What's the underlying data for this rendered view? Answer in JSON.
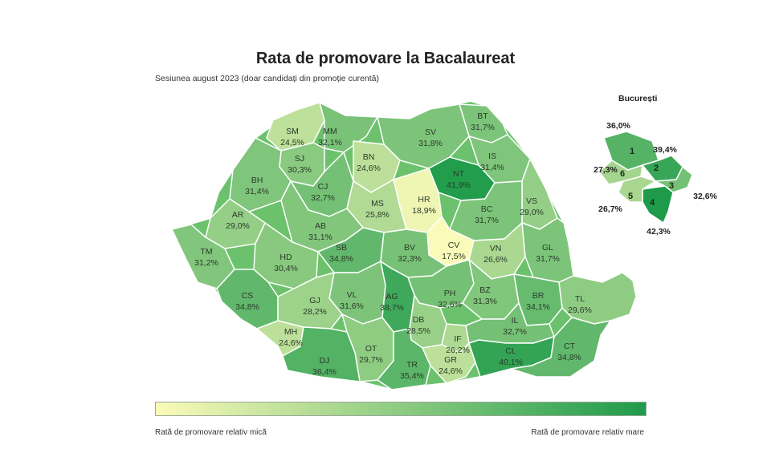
{
  "title": "Rata de promovare la Bacalaureat",
  "subtitle": "Sesiunea august 2023 (doar candidați din promoție curentă)",
  "legend": {
    "low_label": "Rată de promovare relativ mică",
    "high_label": "Rată de promovare relativ mare",
    "low_color": "#fbfbb9",
    "high_color": "#1e9b4a",
    "scale_min": 17.5,
    "scale_max": 42.3
  },
  "counties": [
    {
      "code": "SM",
      "value": "24,5%",
      "v": 24.5
    },
    {
      "code": "MM",
      "value": "32,1%",
      "v": 32.1
    },
    {
      "code": "BT",
      "value": "31,7%",
      "v": 31.7
    },
    {
      "code": "SV",
      "value": "31,8%",
      "v": 31.8
    },
    {
      "code": "BN",
      "value": "24,6%",
      "v": 24.6
    },
    {
      "code": "IS",
      "value": "31,4%",
      "v": 31.4
    },
    {
      "code": "SJ",
      "value": "30,3%",
      "v": 30.3
    },
    {
      "code": "NT",
      "value": "41,9%",
      "v": 41.9
    },
    {
      "code": "BH",
      "value": "31,4%",
      "v": 31.4
    },
    {
      "code": "CJ",
      "value": "32,7%",
      "v": 32.7
    },
    {
      "code": "HR",
      "value": "18,9%",
      "v": 18.9
    },
    {
      "code": "VS",
      "value": "29,0%",
      "v": 29.0
    },
    {
      "code": "MS",
      "value": "25,8%",
      "v": 25.8
    },
    {
      "code": "BC",
      "value": "31,7%",
      "v": 31.7
    },
    {
      "code": "AR",
      "value": "29,0%",
      "v": 29.0
    },
    {
      "code": "AB",
      "value": "31,1%",
      "v": 31.1
    },
    {
      "code": "CV",
      "value": "17,5%",
      "v": 17.5
    },
    {
      "code": "TM",
      "value": "31,2%",
      "v": 31.2
    },
    {
      "code": "HD",
      "value": "30,4%",
      "v": 30.4
    },
    {
      "code": "SB",
      "value": "34,8%",
      "v": 34.8
    },
    {
      "code": "BV",
      "value": "32,3%",
      "v": 32.3
    },
    {
      "code": "VN",
      "value": "26,6%",
      "v": 26.6
    },
    {
      "code": "GL",
      "value": "31,7%",
      "v": 31.7
    },
    {
      "code": "CS",
      "value": "34,8%",
      "v": 34.8
    },
    {
      "code": "VL",
      "value": "31,6%",
      "v": 31.6
    },
    {
      "code": "AG",
      "value": "38,7%",
      "v": 38.7
    },
    {
      "code": "PH",
      "value": "32,6%",
      "v": 32.6
    },
    {
      "code": "BZ",
      "value": "31,3%",
      "v": 31.3
    },
    {
      "code": "BR",
      "value": "34,1%",
      "v": 34.1
    },
    {
      "code": "TL",
      "value": "29,6%",
      "v": 29.6
    },
    {
      "code": "GJ",
      "value": "28,2%",
      "v": 28.2
    },
    {
      "code": "DB",
      "value": "28,5%",
      "v": 28.5
    },
    {
      "code": "IF",
      "value": "26,2%",
      "v": 26.2
    },
    {
      "code": "IL",
      "value": "32,7%",
      "v": 32.7
    },
    {
      "code": "MH",
      "value": "24,6%",
      "v": 24.6
    },
    {
      "code": "OT",
      "value": "29,7%",
      "v": 29.7
    },
    {
      "code": "DJ",
      "value": "36,4%",
      "v": 36.4
    },
    {
      "code": "TR",
      "value": "35,4%",
      "v": 35.4
    },
    {
      "code": "GR",
      "value": "24,6%",
      "v": 24.6
    },
    {
      "code": "CL",
      "value": "40,1%",
      "v": 40.1
    },
    {
      "code": "CT",
      "value": "34,8%",
      "v": 34.8
    }
  ],
  "bucuresti": {
    "title": "București",
    "sectors": [
      {
        "name": "1",
        "value": "36,0%",
        "v": 36.0
      },
      {
        "name": "2",
        "value": "39,4%",
        "v": 39.4
      },
      {
        "name": "3",
        "value": "32,6%",
        "v": 32.6
      },
      {
        "name": "4",
        "value": "42,3%",
        "v": 42.3
      },
      {
        "name": "5",
        "value": "26,7%",
        "v": 26.7
      },
      {
        "name": "6",
        "value": "27,3%",
        "v": 27.3
      }
    ]
  }
}
